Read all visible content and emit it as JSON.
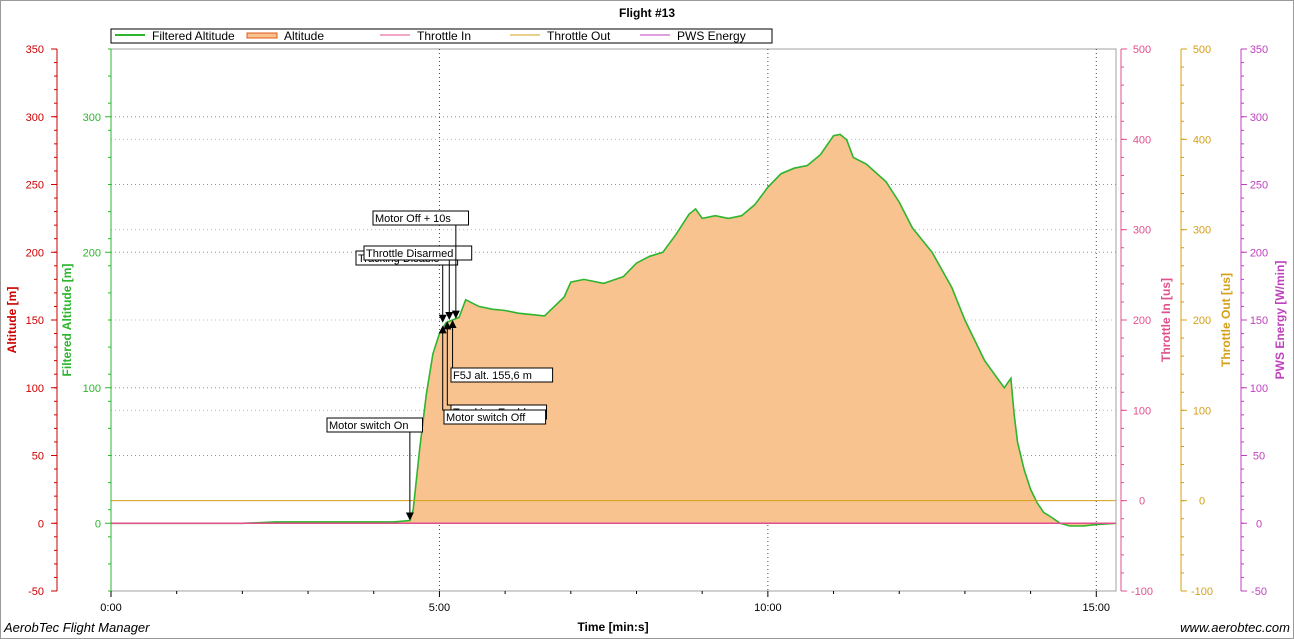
{
  "chart_data": {
    "type": "area",
    "title": "Flight #13",
    "xlabel": "Time [min:s]",
    "xlim": [
      0,
      15.3
    ],
    "x_ticks": [
      {
        "value": 0,
        "label": "0:00"
      },
      {
        "value": 5,
        "label": "5:00"
      },
      {
        "value": 10,
        "label": "10:00"
      },
      {
        "value": 15,
        "label": "15:00"
      }
    ],
    "grid": true,
    "legend": "top-left",
    "legend_entries": [
      {
        "name": "Filtered Altitude",
        "color": "#2db52d"
      },
      {
        "name": "Altitude",
        "color": "#e05a1a"
      },
      {
        "name": "Throttle In",
        "color": "#e0508c"
      },
      {
        "name": "Throttle Out",
        "color": "#d4a017"
      },
      {
        "name": "PWS Energy",
        "color": "#c040c0"
      }
    ],
    "axes": [
      {
        "id": "altitude",
        "label": "Altitude [m]",
        "color": "#cc0000",
        "ylim": [
          -50,
          350
        ],
        "ticks": [
          -50,
          0,
          50,
          100,
          150,
          200,
          250,
          300,
          350
        ]
      },
      {
        "id": "filtered",
        "label": "Filtered Altitude [m]",
        "color": "#2db52d",
        "ylim": [
          -50,
          350
        ],
        "ticks": [
          0,
          100,
          200,
          300
        ]
      },
      {
        "id": "throttle_in",
        "label": "Throttle In [us]",
        "color": "#e0508c",
        "ylim": [
          -100,
          500
        ],
        "ticks": [
          -100,
          0,
          100,
          200,
          300,
          400,
          500
        ]
      },
      {
        "id": "throttle_out",
        "label": "Throttle Out [us]",
        "color": "#d4a017",
        "ylim": [
          -100,
          500
        ],
        "ticks": [
          -100,
          0,
          100,
          200,
          300,
          400,
          500
        ]
      },
      {
        "id": "pws",
        "label": "PWS Energy [W/min]",
        "color": "#c040c0",
        "ylim": [
          -50,
          350
        ],
        "ticks": [
          -50,
          0,
          50,
          100,
          150,
          200,
          250,
          300,
          350
        ]
      }
    ],
    "series": [
      {
        "name": "Altitude",
        "x": [
          0,
          1,
          2,
          2.3,
          2.5,
          3,
          3.5,
          4,
          4.3,
          4.55,
          4.6,
          4.7,
          4.8,
          4.9,
          5.0,
          5.1,
          5.2,
          5.3,
          5.4,
          5.6,
          5.8,
          6.0,
          6.2,
          6.4,
          6.6,
          6.75,
          6.9,
          7.0,
          7.2,
          7.5,
          7.8,
          8.0,
          8.2,
          8.4,
          8.6,
          8.8,
          8.9,
          9.0,
          9.2,
          9.4,
          9.6,
          9.8,
          10.0,
          10.2,
          10.4,
          10.6,
          10.8,
          11.0,
          11.1,
          11.2,
          11.3,
          11.5,
          11.8,
          12.0,
          12.2,
          12.5,
          12.8,
          13.0,
          13.3,
          13.6,
          13.7,
          13.75,
          13.8,
          13.9,
          14.0,
          14.1,
          14.2,
          14.3,
          14.45,
          14.6,
          14.8,
          15.0,
          15.3
        ],
        "values": [
          0,
          0,
          0,
          0.5,
          1,
          1,
          1,
          1,
          1,
          2,
          10,
          55,
          95,
          125,
          140,
          148,
          150,
          152,
          165,
          160,
          158,
          157,
          155,
          154,
          153,
          160,
          167,
          178,
          180,
          177,
          182,
          192,
          197,
          200,
          213,
          228,
          232,
          225,
          227,
          225,
          227,
          235,
          248,
          258,
          262,
          264,
          272,
          286,
          287,
          283,
          270,
          265,
          252,
          237,
          218,
          200,
          174,
          150,
          120,
          100,
          107,
          80,
          60,
          40,
          25,
          15,
          8,
          5,
          0,
          -2,
          -2,
          -1,
          0
        ]
      },
      {
        "name": "Throttle In",
        "x": [
          0,
          15.3
        ],
        "values": [
          -25,
          -25
        ]
      },
      {
        "name": "Throttle Out",
        "x": [
          0,
          15.3
        ],
        "values": [
          0,
          0
        ]
      }
    ],
    "markers": [
      {
        "label": "Motor switch On",
        "x": 4.55,
        "y": 2
      },
      {
        "label": "Tracking Disable",
        "x": 5.05,
        "y": 148
      },
      {
        "label": "Throttle Disarmed",
        "x": 5.15,
        "y": 150
      },
      {
        "label": "Motor Off + 10s",
        "x": 5.25,
        "y": 151
      },
      {
        "label": "F5J alt. 155,6 m",
        "x": 5.2,
        "y": 150
      },
      {
        "label": "Tracking Enable",
        "x": 5.12,
        "y": 149
      },
      {
        "label": "Motor switch Off",
        "x": 5.05,
        "y": 146
      }
    ]
  },
  "footer": {
    "app_name": "AerobTec Flight Manager",
    "website": "www.aerobtec.com"
  }
}
